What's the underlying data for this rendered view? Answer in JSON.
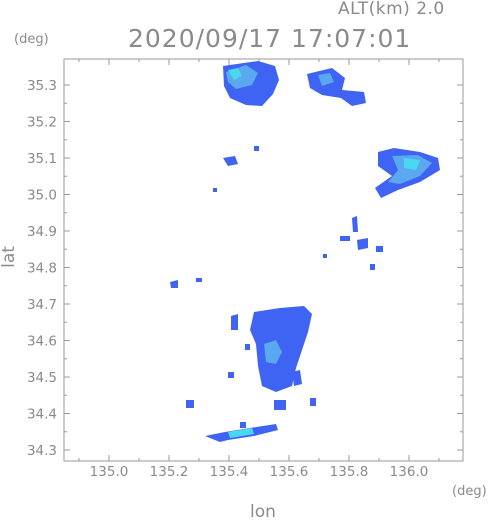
{
  "header": {
    "altitude_label": "ALT(km) 2.0",
    "timestamp": "2020/09/17 17:07:01"
  },
  "axes": {
    "lat_unit": "(deg)",
    "lon_unit": "(deg)",
    "lat_label": "lat",
    "lon_label": "lon",
    "lat_ticks": [
      "35.3",
      "35.2",
      "35.1",
      "35.0",
      "34.9",
      "34.8",
      "34.7",
      "34.6",
      "34.5",
      "34.4",
      "34.3"
    ],
    "lon_ticks": [
      "135.0",
      "135.2",
      "135.4",
      "135.6",
      "135.8",
      "136.0"
    ]
  },
  "colors": {
    "frame": "#9a9a9a",
    "echo_blue": "#3a5cf0",
    "echo_light": "#5aa8f0",
    "echo_cyan": "#4ad8f0"
  }
}
